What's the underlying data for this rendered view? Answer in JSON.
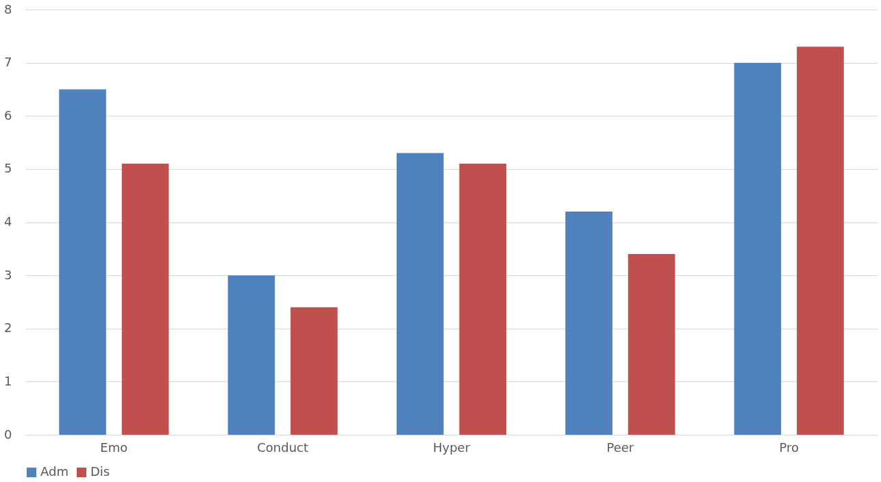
{
  "chart_data": {
    "type": "bar",
    "categories": [
      "Emo",
      "Conduct",
      "Hyper",
      "Peer",
      "Pro"
    ],
    "series": [
      {
        "name": "Adm",
        "color": "#4f81bd",
        "values": [
          6.5,
          3.0,
          5.3,
          4.2,
          7.0
        ]
      },
      {
        "name": "Dis",
        "color": "#c0504d",
        "values": [
          5.1,
          2.4,
          5.1,
          3.4,
          7.3
        ]
      }
    ],
    "ylim": [
      0,
      8
    ],
    "yticks": [
      0,
      1,
      2,
      3,
      4,
      5,
      6,
      7,
      8
    ],
    "grid": "y",
    "legend": "bottom"
  }
}
